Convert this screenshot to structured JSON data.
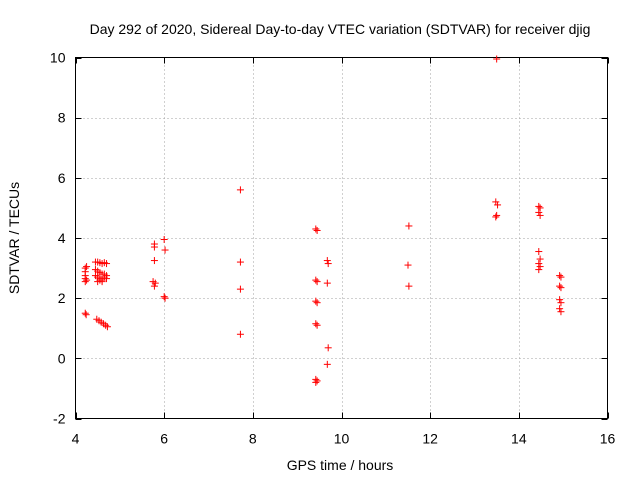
{
  "chart_data": {
    "type": "scatter",
    "title": "Day 292 of 2020, Sidereal Day-to-day VTEC variation (SDTVAR) for receiver djig",
    "xlabel": "GPS time / hours",
    "ylabel": "SDTVAR / TECUs",
    "xlim": [
      4,
      16
    ],
    "ylim": [
      -2,
      10
    ],
    "xticks": [
      4,
      6,
      8,
      10,
      12,
      14,
      16
    ],
    "yticks": [
      -2,
      0,
      2,
      4,
      6,
      8,
      10
    ],
    "grid": true,
    "marker": "plus",
    "color": "#ff0000",
    "series": [
      {
        "name": "SDTVAR",
        "points": [
          [
            4.22,
            3.0
          ],
          [
            4.22,
            2.88
          ],
          [
            4.22,
            2.75
          ],
          [
            4.22,
            2.65
          ],
          [
            4.22,
            2.55
          ],
          [
            4.25,
            3.05
          ],
          [
            4.25,
            2.6
          ],
          [
            4.22,
            1.5
          ],
          [
            4.24,
            1.45
          ],
          [
            4.45,
            3.2
          ],
          [
            4.5,
            3.2
          ],
          [
            4.55,
            3.18
          ],
          [
            4.6,
            3.15
          ],
          [
            4.65,
            3.18
          ],
          [
            4.7,
            3.15
          ],
          [
            4.45,
            2.95
          ],
          [
            4.5,
            2.9
          ],
          [
            4.55,
            2.85
          ],
          [
            4.6,
            2.8
          ],
          [
            4.65,
            2.8
          ],
          [
            4.7,
            2.75
          ],
          [
            4.45,
            2.75
          ],
          [
            4.5,
            2.7
          ],
          [
            4.55,
            2.65
          ],
          [
            4.6,
            2.6
          ],
          [
            4.65,
            2.7
          ],
          [
            4.7,
            2.65
          ],
          [
            4.5,
            2.55
          ],
          [
            4.55,
            2.6
          ],
          [
            4.6,
            2.55
          ],
          [
            4.48,
            1.3
          ],
          [
            4.53,
            1.25
          ],
          [
            4.58,
            1.2
          ],
          [
            4.63,
            1.15
          ],
          [
            4.68,
            1.1
          ],
          [
            4.72,
            1.05
          ],
          [
            5.78,
            3.8
          ],
          [
            5.78,
            3.7
          ],
          [
            5.78,
            3.25
          ],
          [
            5.75,
            2.55
          ],
          [
            5.8,
            2.5
          ],
          [
            5.78,
            2.4
          ],
          [
            6.0,
            3.95
          ],
          [
            6.02,
            3.6
          ],
          [
            6.0,
            2.05
          ],
          [
            6.02,
            2.0
          ],
          [
            7.72,
            5.6
          ],
          [
            7.72,
            3.2
          ],
          [
            7.72,
            2.3
          ],
          [
            7.72,
            0.8
          ],
          [
            9.42,
            4.3
          ],
          [
            9.45,
            4.25
          ],
          [
            9.42,
            2.6
          ],
          [
            9.45,
            2.55
          ],
          [
            9.42,
            1.9
          ],
          [
            9.45,
            1.85
          ],
          [
            9.42,
            1.15
          ],
          [
            9.45,
            1.1
          ],
          [
            9.42,
            -0.7
          ],
          [
            9.45,
            -0.75
          ],
          [
            9.42,
            -0.8
          ],
          [
            9.68,
            3.25
          ],
          [
            9.7,
            3.15
          ],
          [
            9.68,
            2.5
          ],
          [
            9.7,
            0.35
          ],
          [
            9.68,
            -0.2
          ],
          [
            11.52,
            4.4
          ],
          [
            11.5,
            3.1
          ],
          [
            11.52,
            2.4
          ],
          [
            13.5,
            9.95
          ],
          [
            13.48,
            5.2
          ],
          [
            13.52,
            5.1
          ],
          [
            13.5,
            4.75
          ],
          [
            13.48,
            4.7
          ],
          [
            14.45,
            5.05
          ],
          [
            14.48,
            5.0
          ],
          [
            14.45,
            4.85
          ],
          [
            14.48,
            4.75
          ],
          [
            14.45,
            3.55
          ],
          [
            14.48,
            3.3
          ],
          [
            14.45,
            3.15
          ],
          [
            14.48,
            3.05
          ],
          [
            14.45,
            2.95
          ],
          [
            14.92,
            2.75
          ],
          [
            14.95,
            2.7
          ],
          [
            14.92,
            2.4
          ],
          [
            14.95,
            2.35
          ],
          [
            14.92,
            1.95
          ],
          [
            14.95,
            1.85
          ],
          [
            14.92,
            1.65
          ],
          [
            14.95,
            1.55
          ]
        ]
      }
    ]
  }
}
